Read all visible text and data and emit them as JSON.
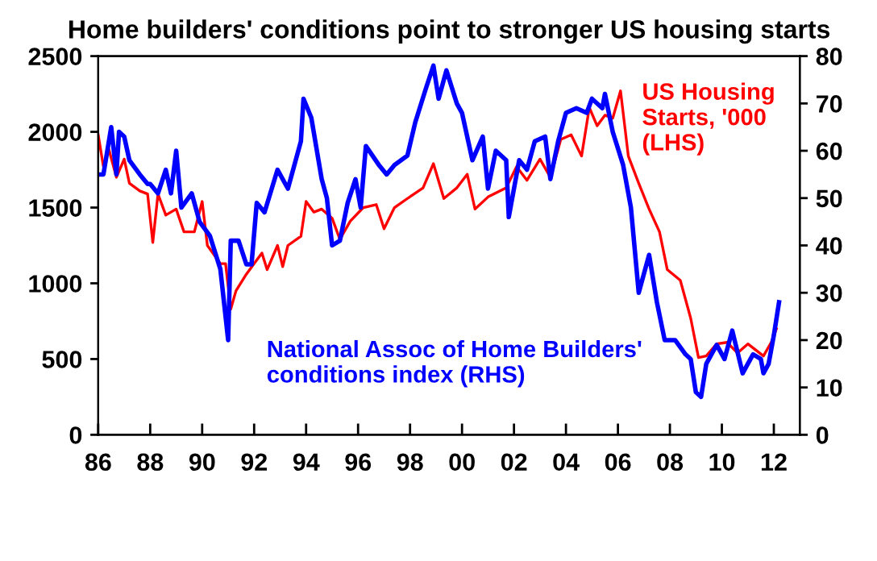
{
  "chart_data": {
    "type": "line",
    "title": "Home builders' conditions point to stronger US housing starts",
    "xlim": [
      1986,
      2013
    ],
    "xticks": [
      {
        "value": 1986,
        "label": "86"
      },
      {
        "value": 1988,
        "label": "88"
      },
      {
        "value": 1990,
        "label": "90"
      },
      {
        "value": 1992,
        "label": "92"
      },
      {
        "value": 1994,
        "label": "94"
      },
      {
        "value": 1996,
        "label": "96"
      },
      {
        "value": 1998,
        "label": "98"
      },
      {
        "value": 2000,
        "label": "00"
      },
      {
        "value": 2002,
        "label": "02"
      },
      {
        "value": 2004,
        "label": "04"
      },
      {
        "value": 2006,
        "label": "06"
      },
      {
        "value": 2008,
        "label": "08"
      },
      {
        "value": 2010,
        "label": "10"
      },
      {
        "value": 2012,
        "label": "12"
      }
    ],
    "ylim": [
      0,
      2500
    ],
    "yticks": [
      0,
      500,
      1000,
      1500,
      2000,
      2500
    ],
    "y2lim": [
      0,
      80
    ],
    "y2ticks": [
      0,
      10,
      20,
      30,
      40,
      50,
      60,
      70,
      80
    ],
    "grid": false,
    "legend": false,
    "series": [
      {
        "name": "US Housing\nStarts, '000\n(LHS)",
        "color": "#ff0000",
        "axis": "y",
        "x": [
          1986.0,
          1986.2,
          1986.4,
          1986.7,
          1987.0,
          1987.2,
          1987.6,
          1987.9,
          1988.1,
          1988.3,
          1988.6,
          1989.0,
          1989.3,
          1989.7,
          1990.0,
          1990.2,
          1990.7,
          1990.9,
          1991.1,
          1991.3,
          1991.7,
          1992.0,
          1992.3,
          1992.5,
          1992.9,
          1993.1,
          1993.3,
          1993.8,
          1994.0,
          1994.3,
          1994.6,
          1995.0,
          1995.3,
          1995.7,
          1996.2,
          1996.7,
          1997.0,
          1997.4,
          1997.9,
          1998.5,
          1998.9,
          1999.3,
          1999.8,
          2000.2,
          2000.5,
          2001.0,
          2001.7,
          2002.1,
          2002.5,
          2003.0,
          2003.4,
          2003.8,
          2004.2,
          2004.6,
          2004.9,
          2005.2,
          2005.5,
          2005.8,
          2006.1,
          2006.4,
          2006.8,
          2007.2,
          2007.6,
          2007.9,
          2008.4,
          2008.8,
          2009.1,
          2009.4,
          2009.8,
          2010.2,
          2010.6,
          2011.0,
          2011.6,
          2011.9,
          2012.1
        ],
        "values": [
          1980,
          1770,
          1890,
          1700,
          1820,
          1660,
          1610,
          1590,
          1270,
          1590,
          1450,
          1490,
          1340,
          1340,
          1540,
          1250,
          1130,
          1130,
          830,
          950,
          1060,
          1130,
          1200,
          1090,
          1250,
          1110,
          1250,
          1310,
          1540,
          1470,
          1490,
          1430,
          1290,
          1410,
          1500,
          1520,
          1360,
          1500,
          1560,
          1630,
          1790,
          1560,
          1630,
          1720,
          1490,
          1570,
          1630,
          1770,
          1680,
          1820,
          1700,
          1950,
          1980,
          1840,
          2160,
          2040,
          2110,
          2090,
          2270,
          1840,
          1660,
          1490,
          1340,
          1090,
          1020,
          770,
          510,
          520,
          600,
          610,
          540,
          600,
          520,
          610,
          700
        ]
      },
      {
        "name": "National Assoc of Home Builders'\nconditions index (RHS)",
        "color": "#0000ff",
        "axis": "y2",
        "x": [
          1986.0,
          1986.2,
          1986.5,
          1986.7,
          1986.8,
          1987.0,
          1987.2,
          1987.6,
          1987.9,
          1988.0,
          1988.3,
          1988.6,
          1988.8,
          1989.0,
          1989.2,
          1989.6,
          1989.9,
          1990.3,
          1990.7,
          1991.0,
          1991.1,
          1991.4,
          1991.7,
          1991.9,
          1992.1,
          1992.4,
          1992.9,
          1993.3,
          1993.8,
          1993.9,
          1994.2,
          1994.6,
          1994.8,
          1995.0,
          1995.3,
          1995.6,
          1995.9,
          1996.1,
          1996.3,
          1996.8,
          1997.1,
          1997.4,
          1997.9,
          1998.2,
          1998.6,
          1998.9,
          1999.1,
          1999.4,
          1999.8,
          2000.0,
          2000.4,
          2000.8,
          2001.0,
          2001.3,
          2001.7,
          2001.8,
          2002.2,
          2002.5,
          2002.8,
          2003.2,
          2003.4,
          2003.7,
          2004.0,
          2004.4,
          2004.8,
          2005.0,
          2005.4,
          2005.5,
          2005.8,
          2006.2,
          2006.5,
          2006.8,
          2007.0,
          2007.2,
          2007.5,
          2007.8,
          2008.2,
          2008.6,
          2008.8,
          2009.0,
          2009.2,
          2009.4,
          2009.8,
          2010.1,
          2010.4,
          2010.8,
          2011.2,
          2011.5,
          2011.6,
          2011.8,
          2012.0,
          2012.2
        ],
        "values": [
          55,
          55,
          65,
          55,
          64,
          63,
          58,
          55,
          53,
          53,
          51,
          56,
          51,
          60,
          48,
          51,
          45,
          42,
          35,
          20,
          41,
          41,
          36,
          36,
          49,
          47,
          56,
          52,
          62,
          71,
          67,
          54,
          50,
          40,
          41,
          49,
          54,
          48,
          61,
          57,
          55,
          57,
          59,
          66,
          73,
          78,
          71,
          77,
          70,
          68,
          58,
          63,
          52,
          60,
          58,
          46,
          58,
          56,
          62,
          63,
          54,
          62,
          68,
          69,
          68,
          71,
          69,
          72,
          64,
          57,
          48,
          30,
          34,
          38,
          28,
          20,
          20,
          17,
          16,
          9,
          8,
          15,
          19,
          16,
          22,
          13,
          17,
          16,
          13,
          15,
          21,
          28
        ]
      }
    ]
  }
}
